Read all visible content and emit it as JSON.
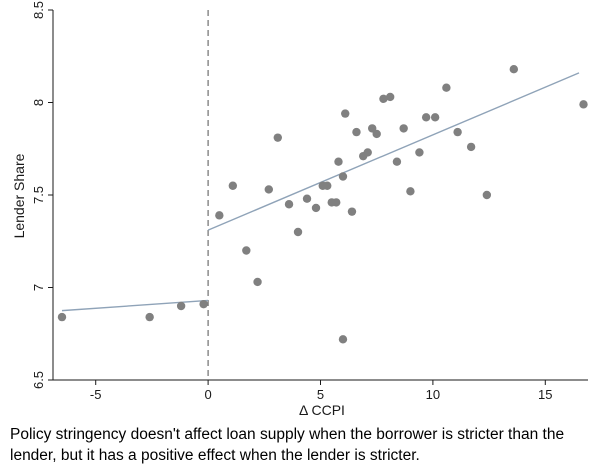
{
  "chart_data": {
    "type": "scatter",
    "xlabel": "Δ CCPI",
    "ylabel": "Lender Share",
    "xlim": [
      -6.9,
      16.9
    ],
    "ylim": [
      6.5,
      8.5
    ],
    "x_ticks": [
      -5,
      0,
      5,
      10,
      15
    ],
    "y_ticks": [
      6.5,
      7,
      7.5,
      8,
      8.5
    ],
    "y_tick_labels": [
      "6.5",
      "7",
      "7.5",
      "8",
      "8.5"
    ],
    "grid": false,
    "point_color": "#808080",
    "line_color": "#8fa3b8",
    "reference_line": {
      "x": 0,
      "style": "dashed",
      "color": "#7a7a7a"
    },
    "points": [
      {
        "x": -6.5,
        "y": 6.84
      },
      {
        "x": -2.6,
        "y": 6.84
      },
      {
        "x": -1.2,
        "y": 6.9
      },
      {
        "x": -0.2,
        "y": 6.91
      },
      {
        "x": 0.5,
        "y": 7.39
      },
      {
        "x": 1.1,
        "y": 7.55
      },
      {
        "x": 1.7,
        "y": 7.2
      },
      {
        "x": 2.2,
        "y": 7.03
      },
      {
        "x": 2.7,
        "y": 7.53
      },
      {
        "x": 3.1,
        "y": 7.81
      },
      {
        "x": 3.6,
        "y": 7.45
      },
      {
        "x": 4.0,
        "y": 7.3
      },
      {
        "x": 4.4,
        "y": 7.48
      },
      {
        "x": 4.8,
        "y": 7.43
      },
      {
        "x": 5.1,
        "y": 7.55
      },
      {
        "x": 5.3,
        "y": 7.55
      },
      {
        "x": 5.5,
        "y": 7.46
      },
      {
        "x": 5.7,
        "y": 7.46
      },
      {
        "x": 5.8,
        "y": 7.68
      },
      {
        "x": 6.0,
        "y": 7.6
      },
      {
        "x": 6.1,
        "y": 7.94
      },
      {
        "x": 6.0,
        "y": 6.72
      },
      {
        "x": 6.4,
        "y": 7.41
      },
      {
        "x": 6.6,
        "y": 7.84
      },
      {
        "x": 6.9,
        "y": 7.71
      },
      {
        "x": 7.1,
        "y": 7.73
      },
      {
        "x": 7.3,
        "y": 7.86
      },
      {
        "x": 7.5,
        "y": 7.83
      },
      {
        "x": 7.8,
        "y": 8.02
      },
      {
        "x": 8.1,
        "y": 8.03
      },
      {
        "x": 8.4,
        "y": 7.68
      },
      {
        "x": 8.7,
        "y": 7.86
      },
      {
        "x": 9.0,
        "y": 7.52
      },
      {
        "x": 9.4,
        "y": 7.73
      },
      {
        "x": 9.7,
        "y": 7.92
      },
      {
        "x": 10.1,
        "y": 7.92
      },
      {
        "x": 10.6,
        "y": 8.08
      },
      {
        "x": 11.1,
        "y": 7.84
      },
      {
        "x": 11.7,
        "y": 7.76
      },
      {
        "x": 12.4,
        "y": 7.5
      },
      {
        "x": 13.6,
        "y": 8.18
      },
      {
        "x": 16.7,
        "y": 7.99
      }
    ],
    "fit_lines": [
      {
        "segment": "left",
        "x": [
          -6.5,
          0
        ],
        "y": [
          6.875,
          6.93
        ]
      },
      {
        "segment": "right",
        "x": [
          0,
          16.5
        ],
        "y": [
          7.31,
          8.16
        ]
      }
    ]
  },
  "caption": "Policy stringency doesn't affect loan supply when the borrower is stricter than the lender, but it has a positive effect when the lender is stricter."
}
